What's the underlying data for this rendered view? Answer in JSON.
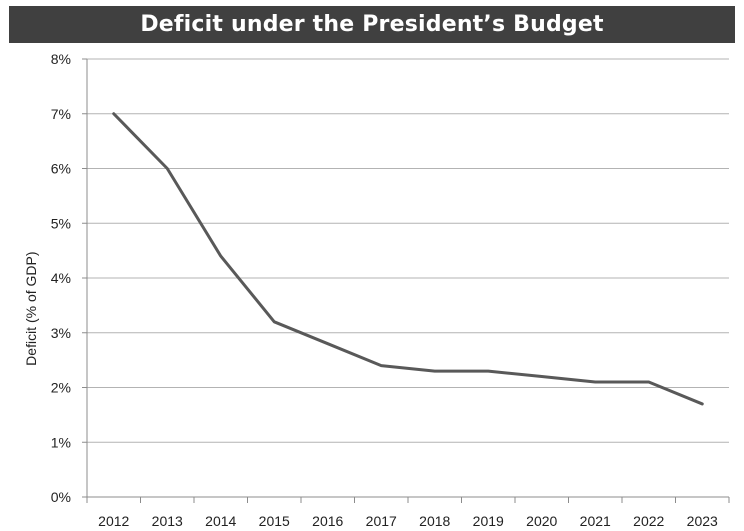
{
  "chart_data": {
    "type": "line",
    "title": "Deficit under the President’s Budget",
    "xlabel": "",
    "ylabel": "Deficit (% of GDP)",
    "x": [
      "2012",
      "2013",
      "2014",
      "2015",
      "2016",
      "2017",
      "2018",
      "2019",
      "2020",
      "2021",
      "2022",
      "2023"
    ],
    "series": [
      {
        "values": [
          7.0,
          6.0,
          4.4,
          3.2,
          2.8,
          2.4,
          2.3,
          2.3,
          2.2,
          2.1,
          2.1,
          1.7
        ]
      }
    ],
    "ylim": [
      0,
      8
    ],
    "yticks": [
      "0%",
      "1%",
      "2%",
      "3%",
      "4%",
      "5%",
      "6%",
      "7%",
      "8%"
    ],
    "grid": true,
    "legend": "none",
    "colors": {
      "line": "#595959",
      "grid": "#b3b3b3",
      "axis": "#8c8c8c",
      "title_bg": "#404040",
      "title_text": "#ffffff"
    }
  }
}
